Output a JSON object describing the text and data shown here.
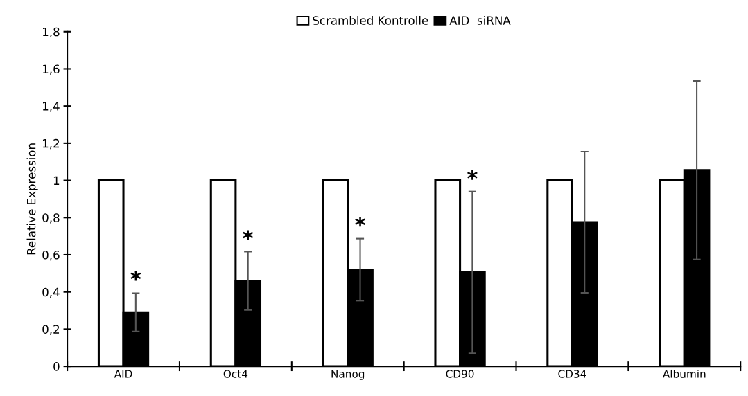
{
  "chart_data": {
    "type": "bar",
    "ylabel": "Relative Expression",
    "categories": [
      "AID",
      "Oct4",
      "Nanog",
      "CD90",
      "CD34",
      "Albumin"
    ],
    "series": [
      {
        "name": "Scrambled Kontrolle",
        "color": "#ffffff",
        "values": [
          1,
          1,
          1,
          1,
          1,
          1
        ]
      },
      {
        "name": "AID  siRNA",
        "color": "#000000",
        "values": [
          0.29,
          0.46,
          0.52,
          0.505,
          0.775,
          1.055
        ],
        "errors": [
          0.103,
          0.157,
          0.167,
          0.435,
          0.38,
          0.48
        ]
      }
    ],
    "ylim": [
      0,
      1.8
    ],
    "yticks": [
      0,
      {
        "value": 0.2,
        "label": "0,2"
      },
      {
        "value": 0.4,
        "label": "0,4"
      },
      {
        "value": 0.6,
        "label": "0,6"
      },
      {
        "value": 0.8,
        "label": "0,8"
      },
      1,
      {
        "value": 1.2,
        "label": "1,2"
      },
      {
        "value": 1.4,
        "label": "1,4"
      },
      {
        "value": 1.6,
        "label": "1,6"
      },
      {
        "value": 1.8,
        "label": "1,8"
      }
    ],
    "annotations": [
      {
        "text": "*",
        "x": "AID",
        "y": 0.395
      },
      {
        "text": "*",
        "x": "Oct4",
        "y": 0.614
      },
      {
        "text": "*",
        "x": "Nanog",
        "y": 0.686
      },
      {
        "text": "*",
        "x": "CD90",
        "y": 0.937
      }
    ],
    "grid": false,
    "legend": "top"
  }
}
